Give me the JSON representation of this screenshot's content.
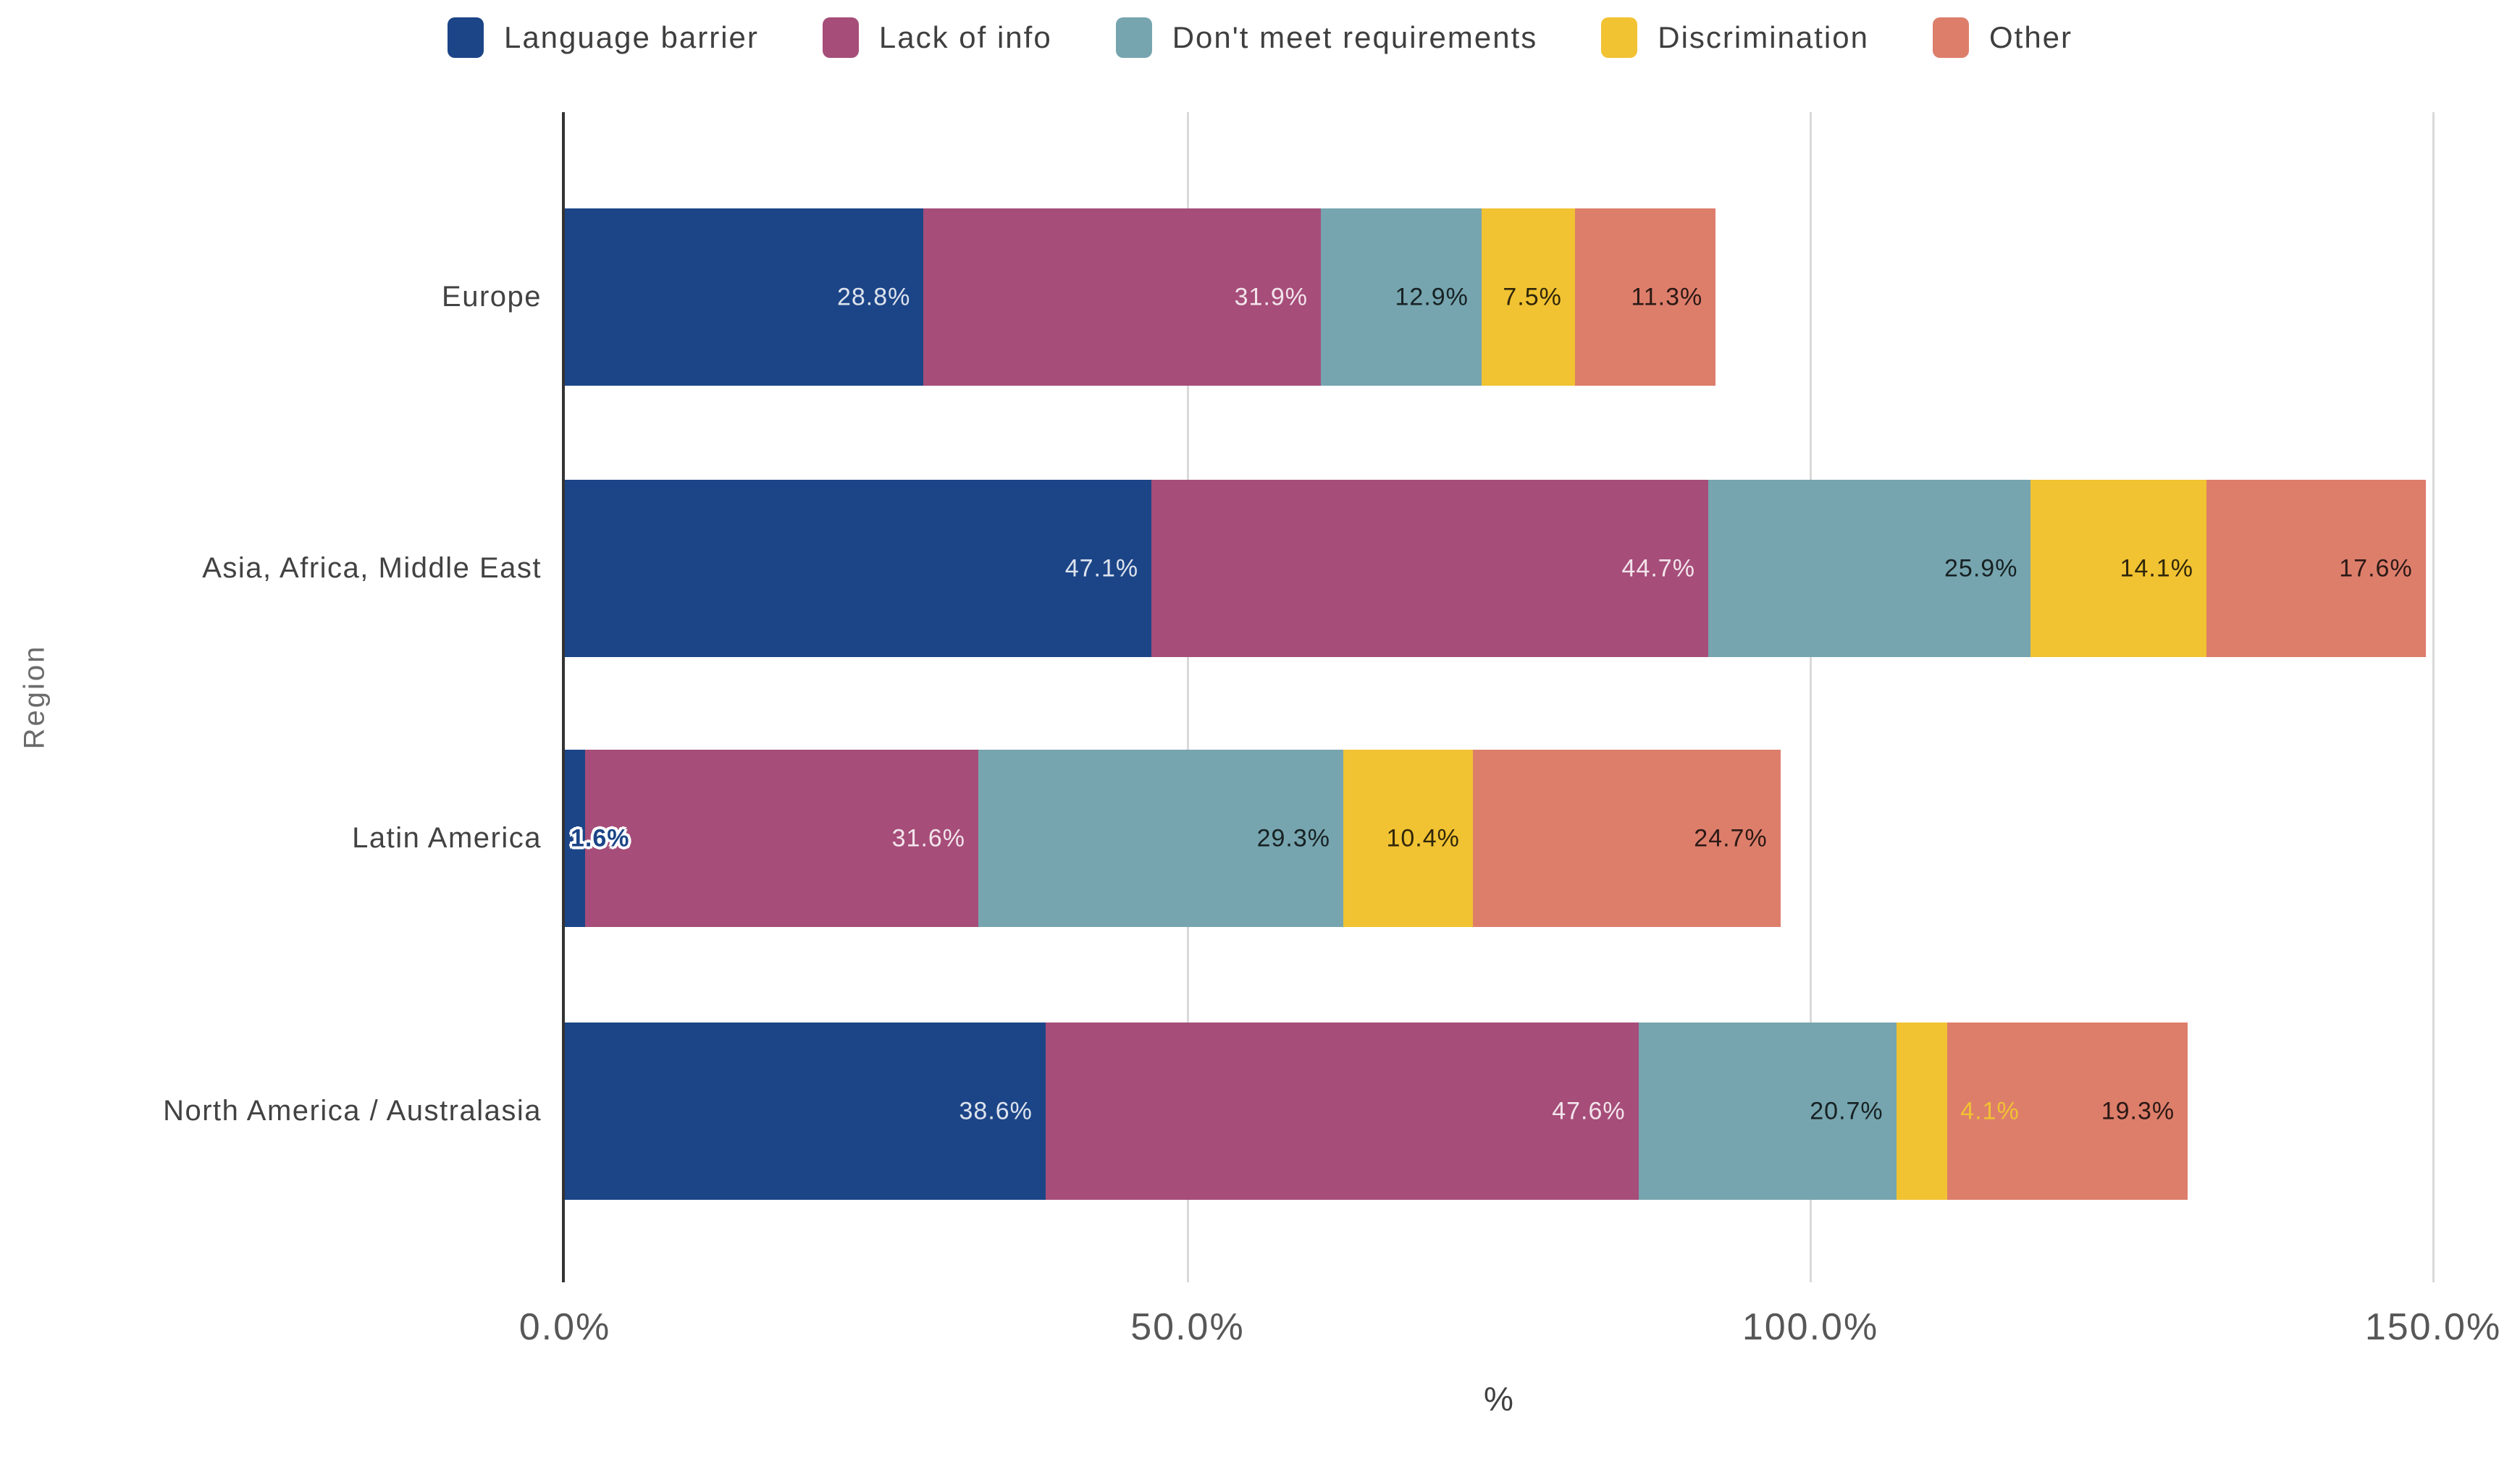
{
  "chart_data": {
    "type": "bar",
    "stacked": true,
    "orientation": "horizontal",
    "title": "",
    "xlabel": "%",
    "ylabel": "Region",
    "xlim": [
      0,
      150
    ],
    "x_ticks": [
      "0.0%",
      "50.0%",
      "100.0%",
      "150.0%"
    ],
    "x_tick_values": [
      0,
      50,
      100,
      150
    ],
    "grid": true,
    "legend_position": "top",
    "value_suffix": "%",
    "categories": [
      "Europe",
      "Asia, Africa, Middle East",
      "Latin America",
      "North America / Australasia"
    ],
    "series": [
      {
        "name": "Language barrier",
        "color": "#1C4587",
        "label_tone": "light",
        "values": [
          28.8,
          47.1,
          1.6,
          38.6
        ]
      },
      {
        "name": "Lack of info",
        "color": "#A64D79",
        "label_tone": "light",
        "values": [
          31.9,
          44.7,
          31.6,
          47.6
        ]
      },
      {
        "name": "Don't meet requirements",
        "color": "#76A5AF",
        "label_tone": "dark",
        "values": [
          12.9,
          25.9,
          29.3,
          20.7
        ]
      },
      {
        "name": "Discrimination",
        "color": "#F1C232",
        "label_tone": "dark",
        "values": [
          7.5,
          14.1,
          10.4,
          4.1
        ]
      },
      {
        "name": "Other",
        "color": "#DD7E6B",
        "label_tone": "dark",
        "values": [
          11.3,
          17.6,
          24.7,
          19.3
        ]
      }
    ],
    "colors": {
      "axis_line": "#333333",
      "gridline": "#d9d9d9",
      "tick_label": "#575757",
      "category_label": "#424242",
      "legend_label": "#3f3f3f"
    }
  }
}
